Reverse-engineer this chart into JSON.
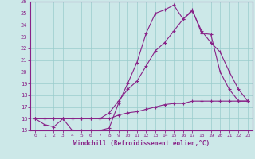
{
  "xlabel": "Windchill (Refroidissement éolien,°C)",
  "xlim": [
    -0.5,
    23.5
  ],
  "ylim": [
    15,
    26
  ],
  "xticks": [
    0,
    1,
    2,
    3,
    4,
    5,
    6,
    7,
    8,
    9,
    10,
    11,
    12,
    13,
    14,
    15,
    16,
    17,
    18,
    19,
    20,
    21,
    22,
    23
  ],
  "yticks": [
    15,
    16,
    17,
    18,
    19,
    20,
    21,
    22,
    23,
    24,
    25,
    26
  ],
  "bg_color": "#cce8e8",
  "line_color": "#882288",
  "grid_color": "#99cccc",
  "line1_x": [
    0,
    1,
    2,
    3,
    4,
    5,
    6,
    7,
    8,
    9,
    10,
    11,
    12,
    13,
    14,
    15,
    16,
    17,
    18,
    19,
    20,
    21,
    22,
    23
  ],
  "line1_y": [
    16,
    15.5,
    15.3,
    16,
    15,
    15,
    15,
    15,
    15.2,
    17.3,
    19.0,
    20.8,
    23.3,
    25.0,
    25.3,
    25.7,
    24.5,
    25.3,
    23.3,
    23.2,
    20.0,
    18.5,
    17.5,
    17.5
  ],
  "line2_x": [
    0,
    1,
    2,
    3,
    4,
    5,
    6,
    7,
    8,
    9,
    10,
    11,
    12,
    13,
    14,
    15,
    16,
    17,
    18,
    19,
    20,
    21,
    22,
    23
  ],
  "line2_y": [
    16,
    16,
    16,
    16,
    16,
    16,
    16,
    16,
    16.5,
    17.5,
    18.5,
    19.2,
    20.5,
    21.8,
    22.5,
    23.5,
    24.5,
    25.2,
    23.5,
    22.5,
    21.7,
    20.0,
    18.5,
    17.5
  ],
  "line3_x": [
    0,
    1,
    2,
    3,
    4,
    5,
    6,
    7,
    8,
    9,
    10,
    11,
    12,
    13,
    14,
    15,
    16,
    17,
    18,
    19,
    20,
    21,
    22,
    23
  ],
  "line3_y": [
    16,
    16,
    16,
    16,
    16,
    16,
    16,
    16,
    16,
    16.3,
    16.5,
    16.6,
    16.8,
    17.0,
    17.2,
    17.3,
    17.3,
    17.5,
    17.5,
    17.5,
    17.5,
    17.5,
    17.5,
    17.5
  ]
}
